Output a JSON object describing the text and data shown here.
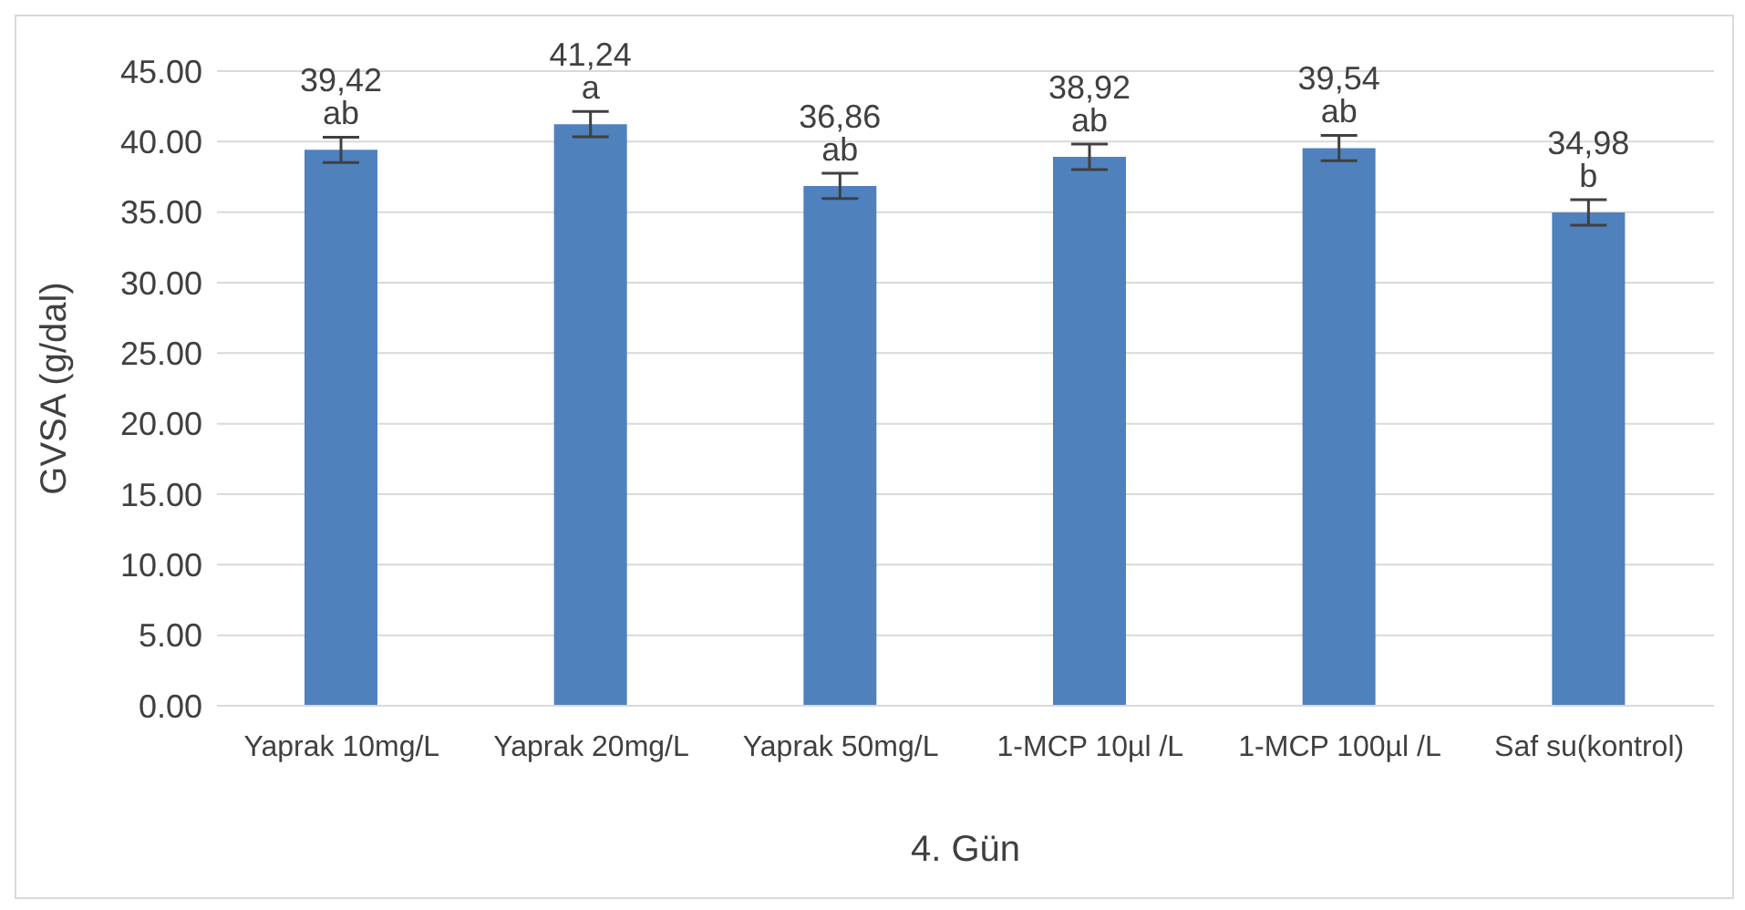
{
  "chart_data": {
    "type": "bar",
    "xlabel": "4. Gün",
    "ylabel": "GVSA (g/dal)",
    "categories": [
      "Yaprak 10mg/L",
      "Yaprak 20mg/L",
      "Yaprak 50mg/L",
      "1-MCP 10µl /L",
      "1-MCP 100µl /L",
      "Saf su(kontrol)"
    ],
    "values": [
      39.42,
      41.24,
      36.86,
      38.92,
      39.54,
      34.98
    ],
    "errors": [
      0.9,
      0.9,
      0.9,
      0.9,
      0.9,
      0.9
    ],
    "value_labels": [
      "39,42 ab",
      "41,24 a",
      "36,86 ab",
      "38,92 ab",
      "39,54 ab",
      "34,98 b"
    ],
    "color": "#4f81bd",
    "ylim": [
      0,
      45
    ],
    "yticks": [
      {
        "value": 0,
        "label": "0.00"
      },
      {
        "value": 5,
        "label": "5.00"
      },
      {
        "value": 10,
        "label": "10.00"
      },
      {
        "value": 15,
        "label": "15.00"
      },
      {
        "value": 20,
        "label": "20.00"
      },
      {
        "value": 25,
        "label": "25.00"
      },
      {
        "value": 30,
        "label": "30.00"
      },
      {
        "value": 35,
        "label": "35.00"
      },
      {
        "value": 40,
        "label": "40.00"
      },
      {
        "value": 45,
        "label": "45.00"
      }
    ],
    "grid": "y",
    "legend": false
  }
}
